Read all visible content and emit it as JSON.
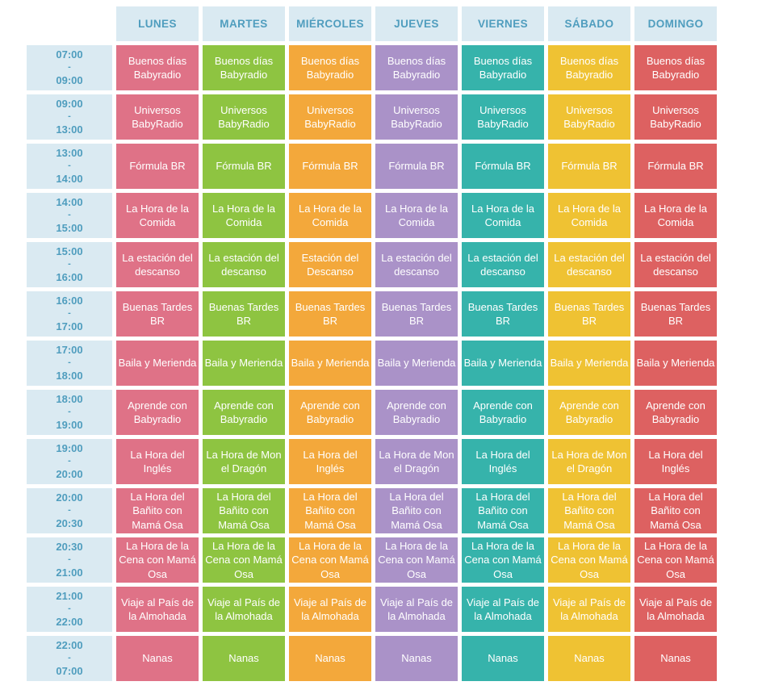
{
  "page": {
    "background": "#ffffff",
    "header_bg": "#daeaf2",
    "header_text_color": "#4f9dbe",
    "cell_text_color": "#ffffff"
  },
  "table": {
    "time_column": {
      "separator": "-"
    },
    "days": [
      {
        "label": "LUNES",
        "color": "#df7287"
      },
      {
        "label": "MARTES",
        "color": "#8ec441"
      },
      {
        "label": "MIÉRCOLES",
        "color": "#f3a83b"
      },
      {
        "label": "JUEVES",
        "color": "#aa92c8"
      },
      {
        "label": "VIERNES",
        "color": "#36b3ab"
      },
      {
        "label": "SÁBADO",
        "color": "#efc233"
      },
      {
        "label": "DOMINGO",
        "color": "#dd6161"
      }
    ],
    "rows": [
      {
        "start": "07:00",
        "end": "09:00",
        "programs": [
          "Buenos días Babyradio",
          "Buenos días Babyradio",
          "Buenos días Babyradio",
          "Buenos días Babyradio",
          "Buenos días Babyradio",
          "Buenos días Babyradio",
          "Buenos días Babyradio"
        ]
      },
      {
        "start": "09:00",
        "end": "13:00",
        "programs": [
          "Universos BabyRadio",
          "Universos BabyRadio",
          "Universos BabyRadio",
          "Universos BabyRadio",
          "Universos BabyRadio",
          "Universos BabyRadio",
          "Universos BabyRadio"
        ]
      },
      {
        "start": "13:00",
        "end": "14:00",
        "programs": [
          "Fórmula BR",
          "Fórmula BR",
          "Fórmula BR",
          "Fórmula BR",
          "Fórmula BR",
          "Fórmula BR",
          "Fórmula BR"
        ]
      },
      {
        "start": "14:00",
        "end": "15:00",
        "programs": [
          "La Hora de la Comida",
          "La Hora de la Comida",
          "La Hora de la Comida",
          "La Hora de la Comida",
          "La Hora de la Comida",
          "La Hora de la Comida",
          "La Hora de la Comida"
        ]
      },
      {
        "start": "15:00",
        "end": "16:00",
        "programs": [
          "La estación del descanso",
          "La estación del descanso",
          "Estación del Descanso",
          "La estación del descanso",
          "La estación del descanso",
          "La estación del descanso",
          "La estación del descanso"
        ]
      },
      {
        "start": "16:00",
        "end": "17:00",
        "programs": [
          "Buenas Tardes BR",
          "Buenas Tardes BR",
          "Buenas Tardes BR",
          "Buenas Tardes BR",
          "Buenas Tardes BR",
          "Buenas Tardes BR",
          "Buenas Tardes BR"
        ]
      },
      {
        "start": "17:00",
        "end": "18:00",
        "programs": [
          "Baila y Merienda",
          "Baila y Merienda",
          "Baila y Merienda",
          "Baila y Merienda",
          "Baila y Merienda",
          "Baila y Merienda",
          "Baila y Merienda"
        ]
      },
      {
        "start": "18:00",
        "end": "19:00",
        "programs": [
          "Aprende con Babyradio",
          "Aprende con Babyradio",
          "Aprende con Babyradio",
          "Aprende con Babyradio",
          "Aprende con Babyradio",
          "Aprende con Babyradio",
          "Aprende con Babyradio"
        ]
      },
      {
        "start": "19:00",
        "end": "20:00",
        "programs": [
          "La Hora del Inglés",
          "La Hora de Mon el Dragón",
          "La Hora del Inglés",
          "La Hora de Mon el Dragón",
          "La Hora del Inglés",
          "La Hora de Mon el Dragón",
          "La Hora del Inglés"
        ]
      },
      {
        "start": "20:00",
        "end": "20:30",
        "programs": [
          "La Hora del Bañito con Mamá Osa",
          "La Hora del Bañito con Mamá Osa",
          "La Hora del Bañito con Mamá Osa",
          "La Hora del Bañito con Mamá Osa",
          "La Hora del Bañito con Mamá Osa",
          "La Hora del Bañito con Mamá Osa",
          "La Hora del Bañito con Mamá Osa"
        ]
      },
      {
        "start": "20:30",
        "end": "21:00",
        "programs": [
          "La Hora de la Cena con Mamá Osa",
          "La Hora de la Cena con Mamá Osa",
          "La Hora de la Cena con Mamá Osa",
          "La Hora de la Cena con Mamá Osa",
          "La Hora de la Cena con Mamá Osa",
          "La Hora de la Cena con Mamá Osa",
          "La Hora de la Cena con Mamá Osa"
        ]
      },
      {
        "start": "21:00",
        "end": "22:00",
        "programs": [
          "Viaje al País de la Almohada",
          "Viaje al País de la Almohada",
          "Viaje al País de la Almohada",
          "Viaje al País de la Almohada",
          "Viaje al País de la Almohada",
          "Viaje al País de la Almohada",
          "Viaje al País de la Almohada"
        ]
      },
      {
        "start": "22:00",
        "end": "07:00",
        "programs": [
          "Nanas",
          "Nanas",
          "Nanas",
          "Nanas",
          "Nanas",
          "Nanas",
          "Nanas"
        ]
      }
    ]
  }
}
